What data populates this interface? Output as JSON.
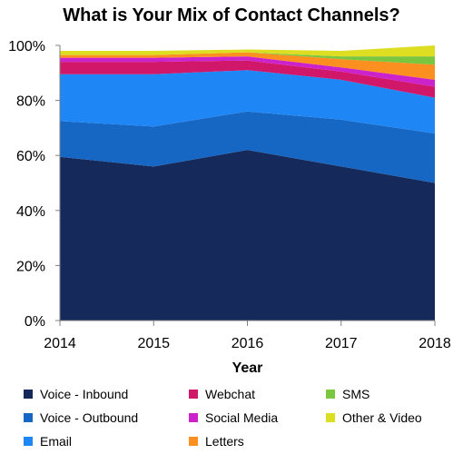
{
  "chart_data": {
    "type": "area",
    "stacked": true,
    "title": "What is Your Mix of Contact Channels?",
    "xlabel": "Year",
    "ylabel": "",
    "x": [
      "2014",
      "2015",
      "2016",
      "2017",
      "2018"
    ],
    "ylim": [
      0,
      100
    ],
    "yticks": [
      "0%",
      "20%",
      "40%",
      "60%",
      "80%",
      "100%"
    ],
    "grid": false,
    "legend_position": "bottom",
    "series": [
      {
        "name": "Voice - Inbound",
        "color": "#152a5a",
        "values": [
          59.5,
          56,
          62,
          56,
          50
        ]
      },
      {
        "name": "Voice - Outbound",
        "color": "#1666c4",
        "values": [
          13,
          14.5,
          14,
          17,
          18
        ]
      },
      {
        "name": "Email",
        "color": "#1e86f5",
        "values": [
          17,
          19,
          15,
          14.5,
          13
        ]
      },
      {
        "name": "Webchat",
        "color": "#d0176a",
        "values": [
          4.5,
          4.5,
          3.5,
          3,
          4
        ]
      },
      {
        "name": "Social Media",
        "color": "#cc22cc",
        "values": [
          1.5,
          1.5,
          1.5,
          1.5,
          2.5
        ]
      },
      {
        "name": "Letters",
        "color": "#fb8f1f",
        "values": [
          1,
          1,
          1.5,
          3,
          5.5
        ]
      },
      {
        "name": "SMS",
        "color": "#7bc63f",
        "values": [
          0,
          0,
          0,
          1,
          3
        ]
      },
      {
        "name": "Other & Video",
        "color": "#dddd22",
        "values": [
          1.5,
          1.5,
          1,
          2,
          4
        ]
      }
    ]
  }
}
